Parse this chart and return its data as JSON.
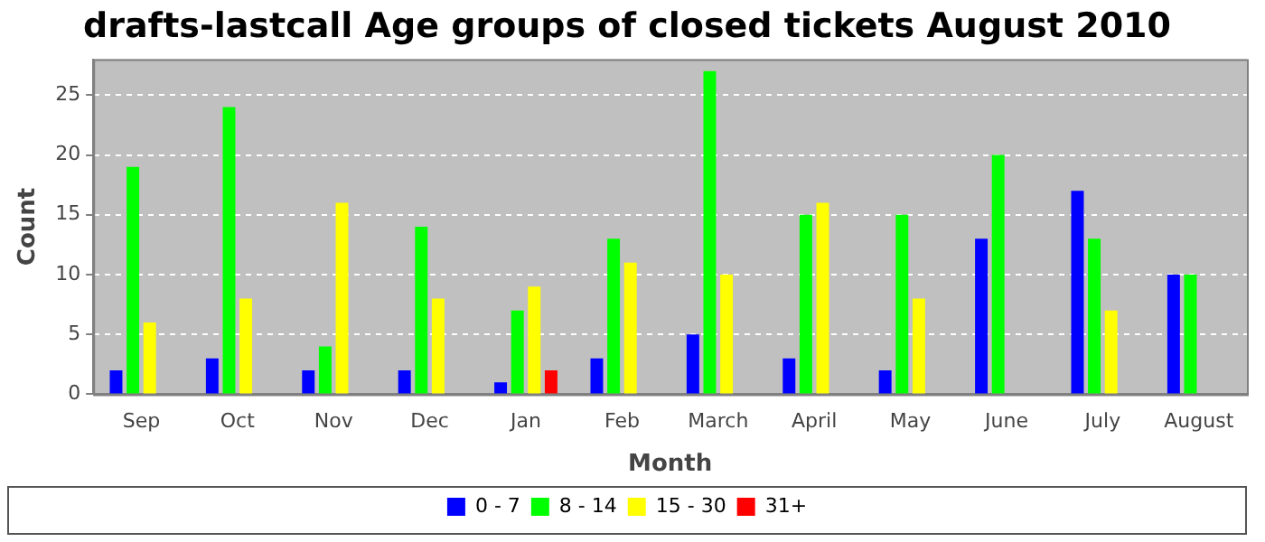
{
  "chart_data": {
    "type": "bar",
    "title": "drafts-lastcall Age groups of closed tickets August 2010",
    "xlabel": "Month",
    "ylabel": "Count",
    "categories": [
      "Sep",
      "Oct",
      "Nov",
      "Dec",
      "Jan",
      "Feb",
      "March",
      "April",
      "May",
      "June",
      "July",
      "August"
    ],
    "series": [
      {
        "name": "0 - 7",
        "color": "#0000ff",
        "values": [
          2,
          3,
          2,
          2,
          1,
          3,
          5,
          3,
          2,
          13,
          17,
          10
        ]
      },
      {
        "name": "8 - 14",
        "color": "#00ff00",
        "values": [
          19,
          24,
          4,
          14,
          7,
          13,
          27,
          15,
          15,
          20,
          13,
          10
        ]
      },
      {
        "name": "15 - 30",
        "color": "#ffff00",
        "values": [
          6,
          8,
          16,
          8,
          9,
          11,
          10,
          16,
          8,
          0,
          7,
          0
        ]
      },
      {
        "name": "31+",
        "color": "#ff0000",
        "values": [
          0,
          0,
          0,
          0,
          2,
          0,
          0,
          0,
          0,
          0,
          0,
          0
        ]
      }
    ],
    "ylim": [
      0,
      28
    ],
    "yticks": [
      0,
      5,
      10,
      15,
      20,
      25
    ],
    "grid": "y",
    "legend": "bottom"
  }
}
